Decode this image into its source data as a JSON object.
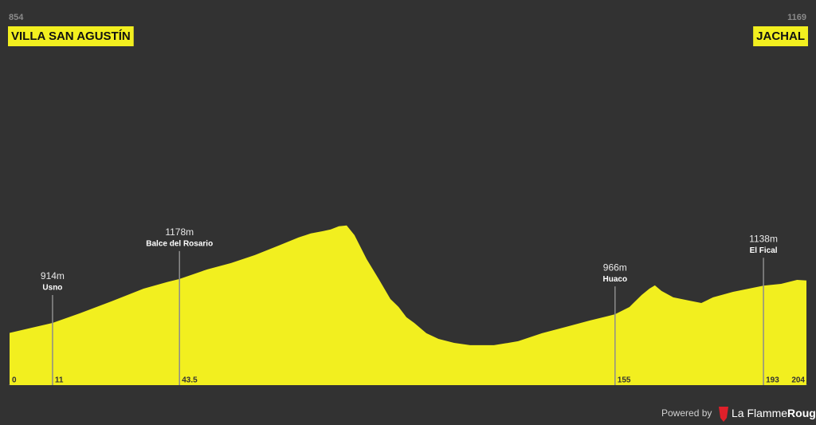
{
  "chart_data": {
    "type": "area",
    "color": "#f2ef1f",
    "start": {
      "elevation": 854,
      "name": "VILLA SAN AGUSTÍN"
    },
    "end": {
      "elevation": 1169,
      "name": "JACHAL"
    },
    "x": [
      0,
      5.7,
      11,
      18,
      26.1,
      34.3,
      40.4,
      43.5,
      50.6,
      56.7,
      62.8,
      69,
      74,
      77.1,
      80.2,
      82.2,
      84.3,
      86.3,
      88.3,
      91.4,
      94.5,
      97.5,
      99.6,
      101.6,
      103.6,
      106.7,
      109.8,
      113.8,
      117.9,
      124,
      130.2,
      136.3,
      142.4,
      148.5,
      155,
      158.7,
      161.8,
      163.8,
      165.2,
      166.9,
      169.9,
      174,
      177.1,
      180.1,
      185.2,
      193,
      197.5,
      201.6,
      204
    ],
    "values": [
      854,
      885,
      914,
      972,
      1044,
      1120,
      1160,
      1178,
      1236,
      1274,
      1322,
      1380,
      1428,
      1452,
      1466,
      1476,
      1495,
      1500,
      1442,
      1298,
      1178,
      1058,
      1010,
      948,
      914,
      852,
      818,
      794,
      780,
      780,
      804,
      852,
      890,
      928,
      966,
      1010,
      1082,
      1120,
      1140,
      1106,
      1068,
      1048,
      1034,
      1068,
      1101,
      1138,
      1149,
      1173,
      1169
    ],
    "xlim": [
      0,
      204
    ],
    "ylim": [
      540,
      2400
    ],
    "xticks": [
      0,
      11,
      43.5,
      155,
      193,
      204
    ],
    "markers": {
      "x": [
        11,
        43.5,
        155,
        193
      ],
      "values": [
        914,
        1178,
        966,
        1138
      ],
      "value_labels": [
        "914m",
        "1178m",
        "966m",
        "1138m"
      ],
      "names": [
        "Usno",
        "Balce del Rosario",
        "Huaco",
        "El Fical"
      ]
    }
  },
  "footer": {
    "powered_by": "Powered by",
    "brand": "La Flamme",
    "brand_bold": "Rouge"
  }
}
